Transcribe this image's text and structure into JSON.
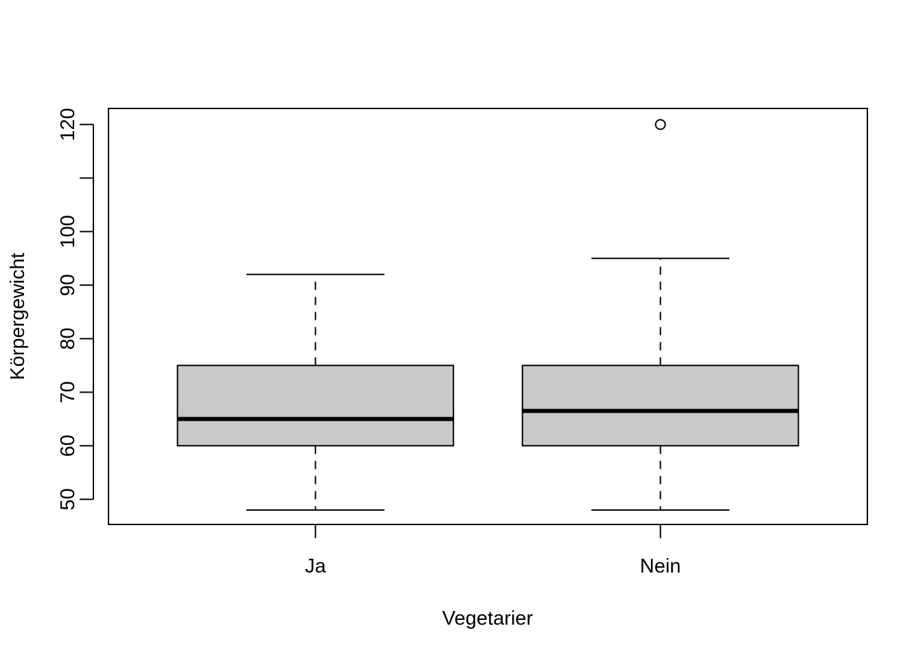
{
  "chart_data": {
    "type": "box",
    "title": "",
    "xlabel": "Vegetarier",
    "ylabel": "Körpergewicht",
    "ylim": [
      45.3,
      123.0
    ],
    "yticks": [
      50,
      60,
      70,
      80,
      90,
      100,
      110,
      120
    ],
    "ytick_labels": [
      "50",
      "60",
      "70",
      "80",
      "90",
      "100",
      "",
      "120"
    ],
    "categories": [
      "Ja",
      "Nein"
    ],
    "boxes": [
      {
        "category": "Ja",
        "whisker_low": 48,
        "q1": 60,
        "median": 65,
        "q3": 75,
        "whisker_high": 92,
        "outliers": []
      },
      {
        "category": "Nein",
        "whisker_low": 48,
        "q1": 60,
        "median": 66.5,
        "q3": 75,
        "whisker_high": 95,
        "outliers": [
          120
        ]
      }
    ],
    "colors": {
      "box_fill": "#c9c9c9",
      "stroke": "#000000",
      "background": "#ffffff"
    },
    "grid": false,
    "legend": "none"
  }
}
